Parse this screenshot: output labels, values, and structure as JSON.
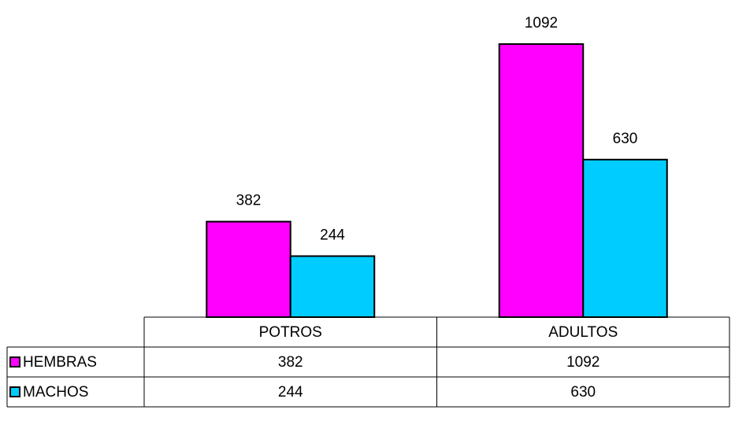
{
  "chart_data": {
    "type": "bar",
    "categories": [
      "POTROS",
      "ADULTOS"
    ],
    "series": [
      {
        "name": "HEMBRAS",
        "color": "#ff00ff",
        "values": [
          382,
          1092
        ]
      },
      {
        "name": "MACHOS",
        "color": "#00ccff",
        "values": [
          244,
          630
        ]
      }
    ]
  }
}
